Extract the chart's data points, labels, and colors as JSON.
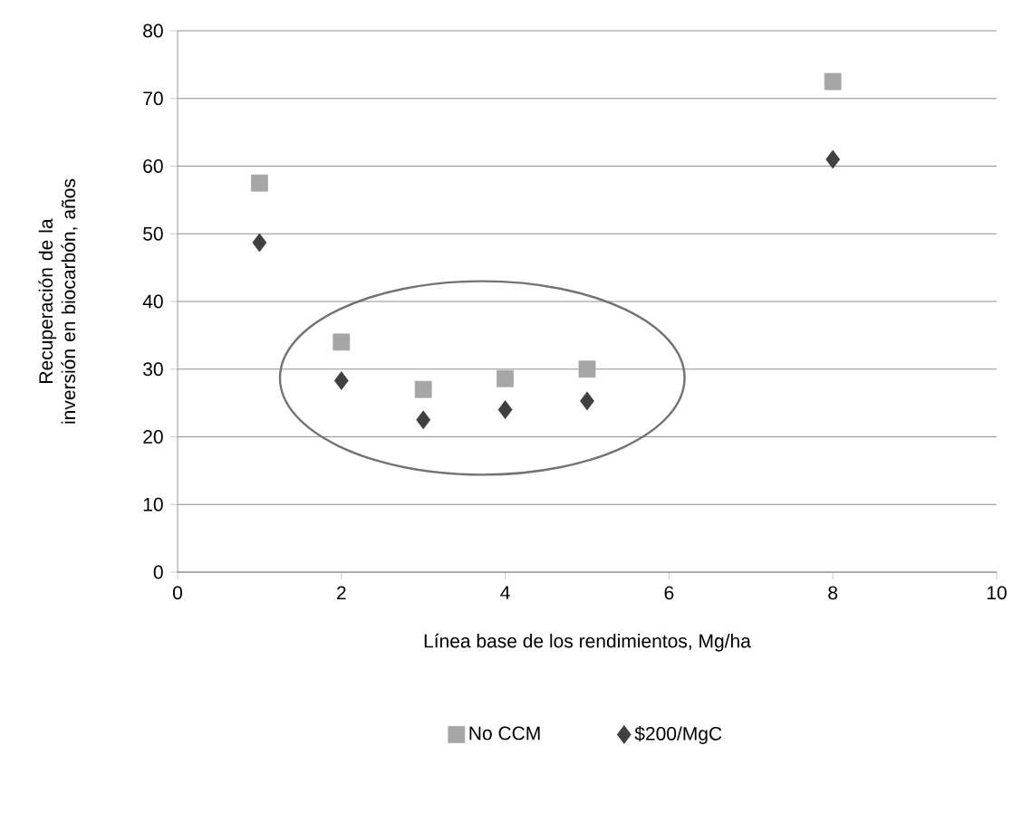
{
  "chart_data": {
    "type": "scatter",
    "xlabel": "Línea base de los rendimientos, Mg/ha",
    "ylabel": "Recuperación de la inversión en biocarbón, años",
    "x": [
      1,
      2,
      3,
      4,
      5,
      8
    ],
    "series": [
      {
        "name": "No CCM",
        "color": "#a6a6a6",
        "marker": "square",
        "values": [
          57.5,
          34,
          27,
          28.6,
          30,
          72.5
        ]
      },
      {
        "name": "$200/MgC",
        "color": "#404040",
        "marker": "diamond",
        "values": [
          48.7,
          28.3,
          22.5,
          24,
          25.3,
          61
        ]
      }
    ],
    "xlim": [
      0,
      10
    ],
    "xticks": [
      0,
      2,
      4,
      6,
      8,
      10
    ],
    "ylim": [
      0,
      80
    ],
    "yticks": [
      0,
      10,
      20,
      30,
      40,
      50,
      60,
      70,
      80
    ],
    "grid": "y",
    "legend": "bottom"
  }
}
